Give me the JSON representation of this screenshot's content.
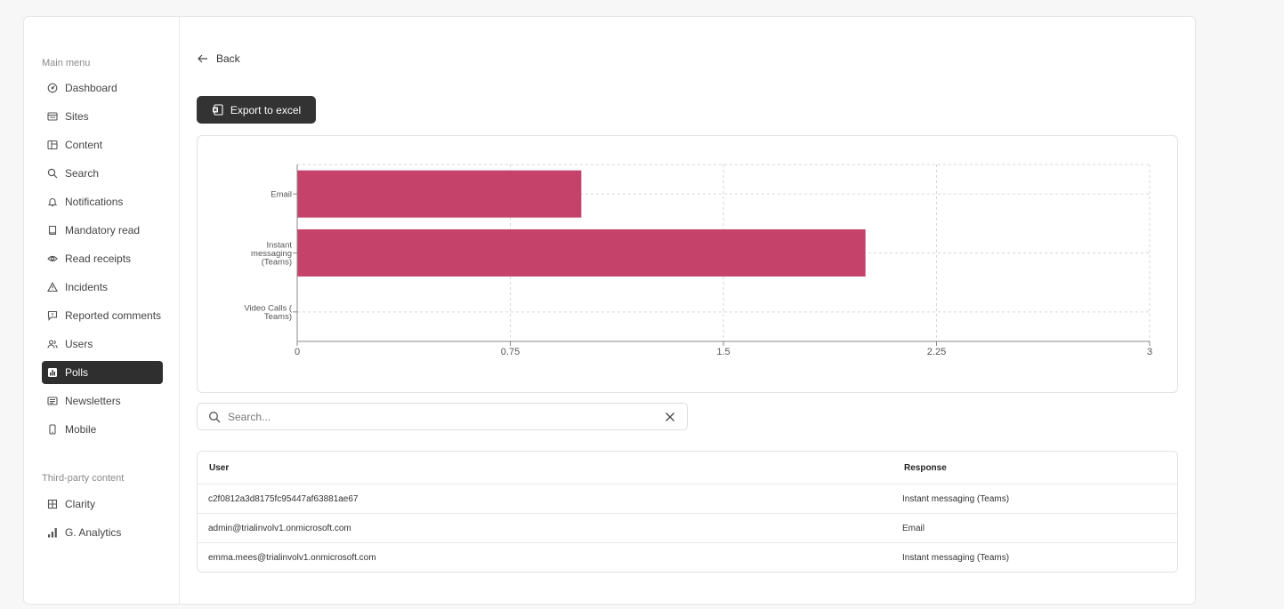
{
  "sidebar": {
    "main_menu_label": "Main menu",
    "items": [
      {
        "label": "Dashboard",
        "icon": "dashboard-icon"
      },
      {
        "label": "Sites",
        "icon": "sites-icon"
      },
      {
        "label": "Content",
        "icon": "content-icon"
      },
      {
        "label": "Search",
        "icon": "search-icon"
      },
      {
        "label": "Notifications",
        "icon": "bell-icon"
      },
      {
        "label": "Mandatory read",
        "icon": "book-icon"
      },
      {
        "label": "Read receipts",
        "icon": "eye-icon"
      },
      {
        "label": "Incidents",
        "icon": "warning-icon"
      },
      {
        "label": "Reported comments",
        "icon": "comment-icon"
      },
      {
        "label": "Users",
        "icon": "users-icon"
      },
      {
        "label": "Polls",
        "icon": "polls-icon",
        "active": true
      },
      {
        "label": "Newsletters",
        "icon": "newsletter-icon"
      },
      {
        "label": "Mobile",
        "icon": "mobile-icon"
      }
    ],
    "third_party_label": "Third-party content",
    "third_party_items": [
      {
        "label": "Clarity",
        "icon": "grid-icon"
      },
      {
        "label": "G. Analytics",
        "icon": "analytics-icon"
      }
    ]
  },
  "main": {
    "back_label": "Back",
    "export_label": "Export to excel"
  },
  "chart_data": {
    "type": "bar",
    "orientation": "horizontal",
    "categories": [
      "Email",
      "Instant messaging (Teams)",
      "Video Calls ( Teams)"
    ],
    "category_label_lines": [
      [
        "Email"
      ],
      [
        "Instant",
        "messaging",
        "(Teams)"
      ],
      [
        "Video Calls (",
        "Teams)"
      ]
    ],
    "values": [
      1,
      2,
      0
    ],
    "xlim": [
      0,
      3
    ],
    "xticks": [
      "0",
      "0.75",
      "1.5",
      "2.25",
      "3"
    ],
    "xtick_values": [
      0,
      0.75,
      1.5,
      2.25,
      3
    ],
    "grid": true,
    "bar_color": "#c5436a"
  },
  "search": {
    "placeholder": "Search..."
  },
  "table": {
    "headers": [
      "User",
      "Response"
    ],
    "rows": [
      [
        "c2f0812a3d8175fc95447af63881ae67",
        "Instant messaging (Teams)"
      ],
      [
        "admin@trialinvolv1.onmicrosoft.com",
        "Email"
      ],
      [
        "emma.mees@trialinvolv1.onmicrosoft.com",
        "Instant messaging (Teams)"
      ]
    ]
  }
}
